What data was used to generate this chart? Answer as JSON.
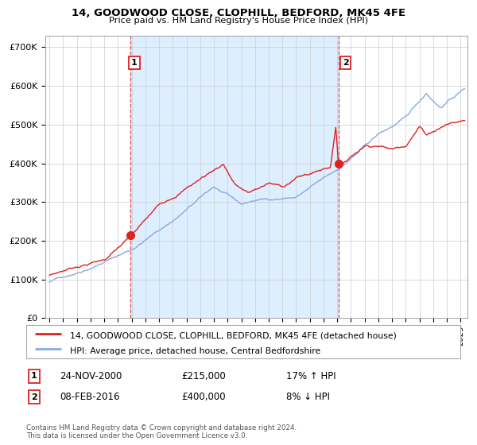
{
  "title": "14, GOODWOOD CLOSE, CLOPHILL, BEDFORD, MK45 4FE",
  "subtitle": "Price paid vs. HM Land Registry's House Price Index (HPI)",
  "ylim": [
    0,
    730000
  ],
  "yticks": [
    0,
    100000,
    200000,
    300000,
    400000,
    500000,
    600000,
    700000
  ],
  "ytick_labels": [
    "£0",
    "£100K",
    "£200K",
    "£300K",
    "£400K",
    "£500K",
    "£600K",
    "£700K"
  ],
  "xlim_start": 1994.7,
  "xlim_end": 2025.5,
  "property_color": "#dd2222",
  "hpi_color": "#88aadd",
  "hpi_fill_color": "#ddeeff",
  "marker1_x": 2000.9,
  "marker1_y": 215000,
  "marker2_x": 2016.1,
  "marker2_y": 400000,
  "legend_property": "14, GOODWOOD CLOSE, CLOPHILL, BEDFORD, MK45 4FE (detached house)",
  "legend_hpi": "HPI: Average price, detached house, Central Bedfordshire",
  "table_row1": [
    "1",
    "24-NOV-2000",
    "£215,000",
    "17% ↑ HPI"
  ],
  "table_row2": [
    "2",
    "08-FEB-2016",
    "£400,000",
    "8% ↓ HPI"
  ],
  "footnote": "Contains HM Land Registry data © Crown copyright and database right 2024.\nThis data is licensed under the Open Government Licence v3.0.",
  "background_color": "#ffffff",
  "grid_color": "#cccccc"
}
